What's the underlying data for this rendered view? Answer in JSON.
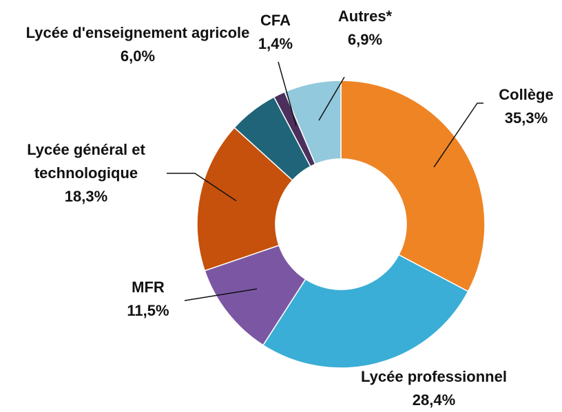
{
  "chart_data": {
    "type": "donut",
    "categories": [
      "Collège",
      "Lycée professionnel",
      "MFR",
      "Lycée général et technologique",
      "Lycée d'enseignement agricole",
      "CFA",
      "Autres*"
    ],
    "values": [
      35.3,
      28.4,
      11.5,
      18.3,
      6.0,
      1.4,
      6.9
    ],
    "value_labels": [
      "35,3%",
      "28,4%",
      "11,5%",
      "18,3%",
      "6,0%",
      "1,4%",
      "6,9%"
    ],
    "colors": [
      "#ef8424",
      "#3aaed6",
      "#7b57a3",
      "#c5510c",
      "#1f6478",
      "#4b2f5c",
      "#92c9dc"
    ]
  }
}
